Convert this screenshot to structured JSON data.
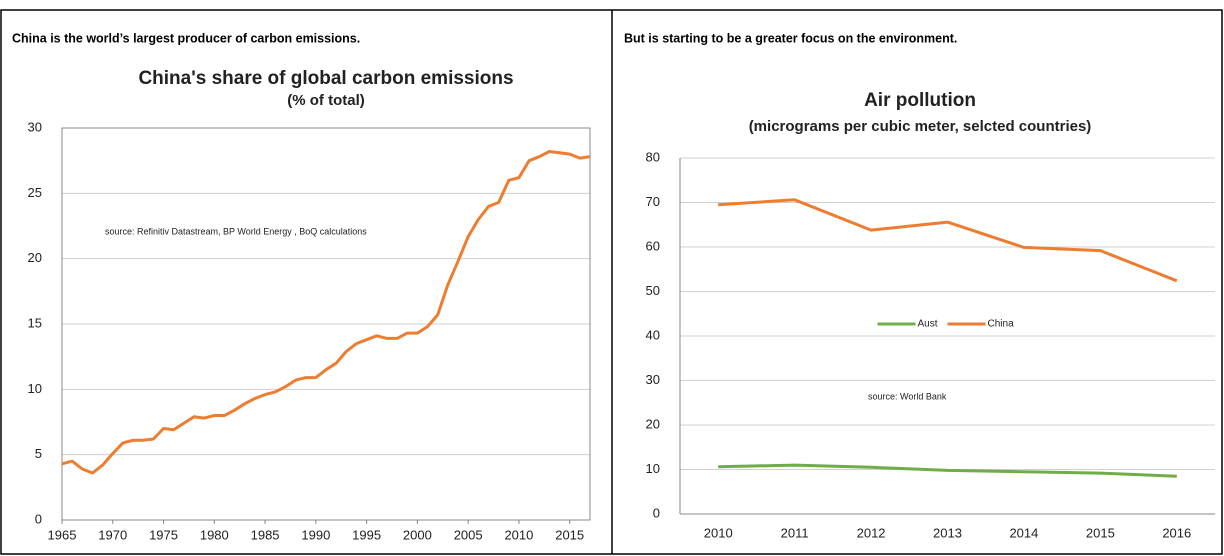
{
  "chart_data": [
    {
      "type": "line",
      "header": "China is the world’s largest producer of carbon emissions.",
      "title": "China's share of global carbon emissions",
      "subtitle": "(% of total)",
      "annotation": "source:  Refinitiv Datastream,  BP World Energy  , BoQ calculations",
      "x": [
        1965,
        1966,
        1967,
        1968,
        1969,
        1970,
        1971,
        1972,
        1973,
        1974,
        1975,
        1976,
        1977,
        1978,
        1979,
        1980,
        1981,
        1982,
        1983,
        1984,
        1985,
        1986,
        1987,
        1988,
        1989,
        1990,
        1991,
        1992,
        1993,
        1994,
        1995,
        1996,
        1997,
        1998,
        1999,
        2000,
        2001,
        2002,
        2003,
        2004,
        2005,
        2006,
        2007,
        2008,
        2009,
        2010,
        2011,
        2012,
        2013,
        2014,
        2015,
        2016,
        2017
      ],
      "series": [
        {
          "color": "#ed7d31",
          "values": [
            4.3,
            4.5,
            3.9,
            3.6,
            4.2,
            5.1,
            5.9,
            6.1,
            6.1,
            6.2,
            7.0,
            6.9,
            7.4,
            7.9,
            7.8,
            8.0,
            8.0,
            8.4,
            8.9,
            9.3,
            9.6,
            9.8,
            10.2,
            10.7,
            10.9,
            10.9,
            11.5,
            12.0,
            12.9,
            13.5,
            13.8,
            14.1,
            13.9,
            13.9,
            14.3,
            14.3,
            14.8,
            15.7,
            18.0,
            19.8,
            21.7,
            23.0,
            24.0,
            24.3,
            26.0,
            26.2,
            27.5,
            27.8,
            28.2,
            28.1,
            28.0,
            27.7,
            27.8
          ]
        }
      ],
      "xlim": [
        1965,
        2017
      ],
      "xticks": [
        1965,
        1970,
        1975,
        1980,
        1985,
        1990,
        1995,
        2000,
        2005,
        2010,
        2015
      ],
      "ylim": [
        0,
        30
      ],
      "yticks": [
        0,
        5,
        10,
        15,
        20,
        25,
        30
      ],
      "grid": true
    },
    {
      "type": "line",
      "header": "But is starting to be a greater focus on the environment.",
      "title": "Air pollution",
      "subtitle": "(micrograms per cubic meter, selcted countries)",
      "annotation": "source:  World Bank",
      "categories": [
        "2010",
        "2011",
        "2012",
        "2013",
        "2014",
        "2015",
        "2016"
      ],
      "series": [
        {
          "name": "Aust",
          "color": "#70ad47",
          "values": [
            10.6,
            11.0,
            10.5,
            9.8,
            9.5,
            9.2,
            8.5
          ]
        },
        {
          "name": "China",
          "color": "#ed7d31",
          "values": [
            69.5,
            70.6,
            63.8,
            65.6,
            59.9,
            59.2,
            52.4
          ]
        }
      ],
      "ylim": [
        0,
        80
      ],
      "yticks": [
        0,
        10,
        20,
        30,
        40,
        50,
        60,
        70,
        80
      ],
      "grid": true,
      "legend": "center"
    }
  ]
}
